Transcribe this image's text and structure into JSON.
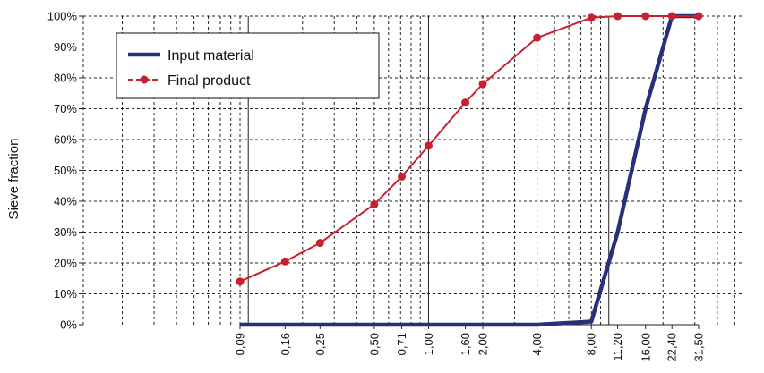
{
  "chart_data": {
    "type": "line",
    "ylabel": "Sieve fraction",
    "xlabel": "",
    "x_scale": "log",
    "categories": [
      "0,09",
      "0,16",
      "0,25",
      "0,50",
      "0,71",
      "1,00",
      "1,60",
      "2,00",
      "4,00",
      "8,00",
      "11,20",
      "16,00",
      "22,40",
      "31,50"
    ],
    "x": [
      0.09,
      0.16,
      0.25,
      0.5,
      0.71,
      1.0,
      1.6,
      2.0,
      4.0,
      8.0,
      11.2,
      16.0,
      22.4,
      31.5
    ],
    "y_ticks": [
      "0%",
      "10%",
      "20%",
      "30%",
      "40%",
      "50%",
      "60%",
      "70%",
      "80%",
      "90%",
      "100%"
    ],
    "ylim": [
      0,
      100
    ],
    "grid": true,
    "legend_position": "top-left",
    "series": [
      {
        "name": "Input material",
        "color": "#27317a",
        "marker": "none",
        "values": [
          0,
          0,
          0,
          0,
          0,
          0,
          0,
          0,
          0,
          1,
          30,
          70,
          100,
          100
        ]
      },
      {
        "name": "Final product",
        "color": "#c8202f",
        "marker": "circle",
        "values": [
          14,
          20.5,
          26.5,
          39,
          48,
          58,
          72,
          78,
          93,
          99.5,
          100,
          100,
          100,
          100
        ]
      }
    ]
  }
}
